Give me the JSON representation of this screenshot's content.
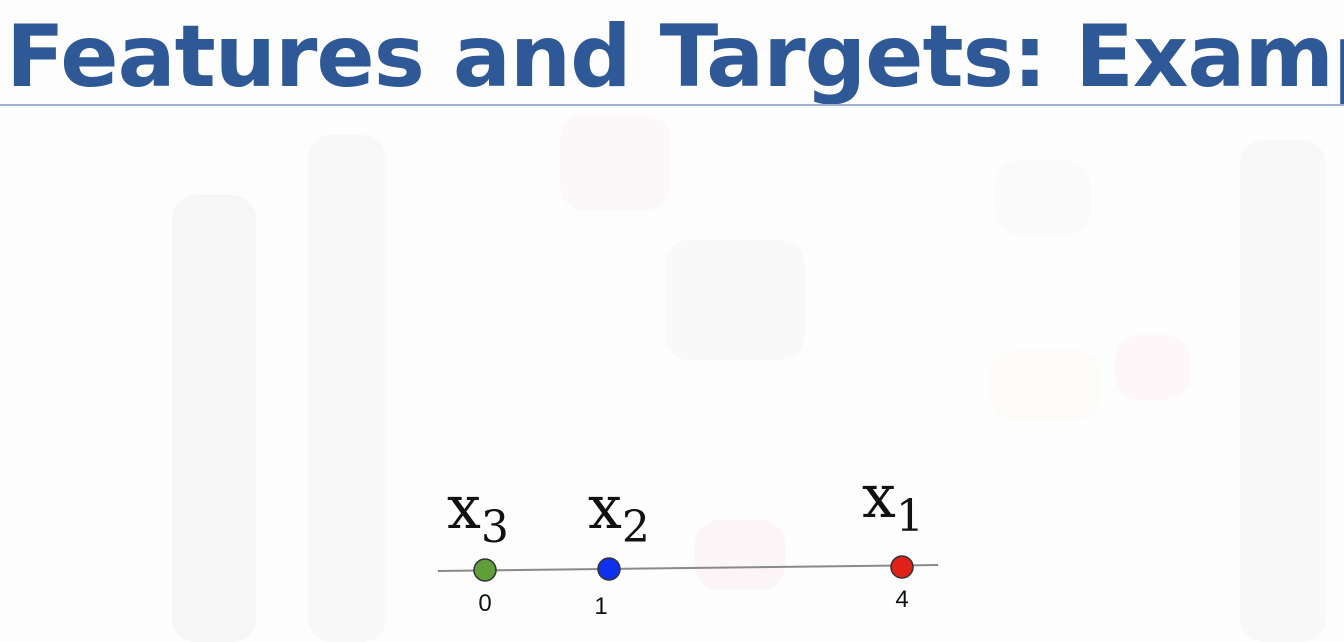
{
  "slide": {
    "title": "Features and Targets: Example"
  },
  "diagram": {
    "axis_line_color": "#8a8a8a",
    "points": [
      {
        "id": "x3",
        "label": "x",
        "subscript": "3",
        "value": "0",
        "color": "#5f9e3a"
      },
      {
        "id": "x2",
        "label": "x",
        "subscript": "2",
        "value": "1",
        "color": "#1030f0"
      },
      {
        "id": "x1",
        "label": "x",
        "subscript": "1",
        "value": "4",
        "color": "#e0201a"
      }
    ]
  },
  "colors": {
    "title": "#2f5896",
    "title_rule": "#9db2d4"
  }
}
